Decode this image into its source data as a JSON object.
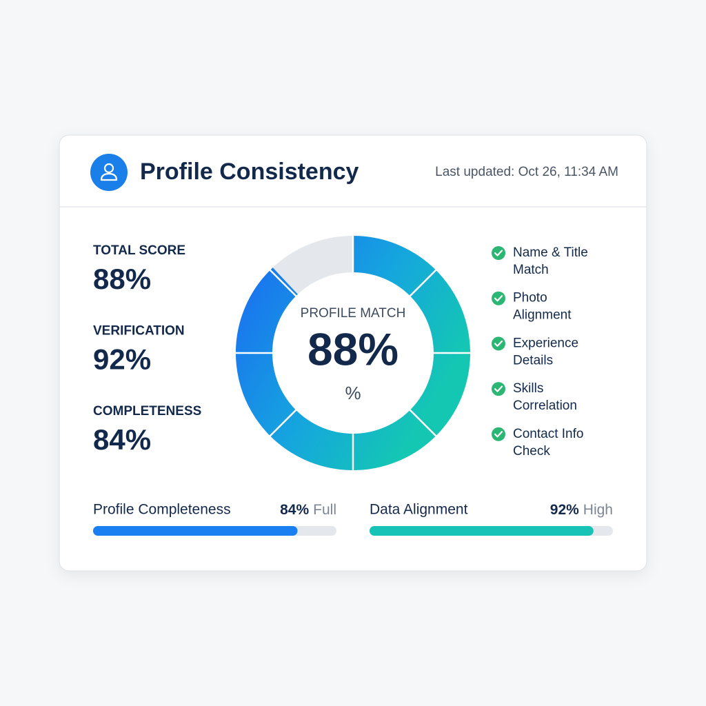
{
  "header": {
    "title": "Profile Consistency",
    "updated": "Last updated: Oct 26, 11:34 AM"
  },
  "stats": [
    {
      "label": "TOTAL SCORE",
      "value": "88%"
    },
    {
      "label": "VERIFICATION",
      "value": "92%"
    },
    {
      "label": "COMPLETENESS",
      "value": "84%"
    }
  ],
  "donut": {
    "title": "PROFILE MATCH",
    "value": 88,
    "value_label": "88%",
    "unit": "%"
  },
  "checks": [
    {
      "lines": [
        "Name & Title",
        "Match"
      ]
    },
    {
      "lines": [
        "Photo",
        "Alignment"
      ]
    },
    {
      "lines": [
        "Experience",
        "Details"
      ]
    },
    {
      "lines": [
        "Skills",
        "Correlation"
      ]
    },
    {
      "lines": [
        "Contact Info",
        "Check"
      ]
    }
  ],
  "bars": [
    {
      "label": "Profile Completeness",
      "value": 84,
      "value_label": "84%",
      "status": "Full",
      "color": "#1a7ff0"
    },
    {
      "label": "Data Alignment",
      "value": 92,
      "value_label": "92%",
      "status": "High",
      "color": "#17c3b6"
    }
  ]
}
